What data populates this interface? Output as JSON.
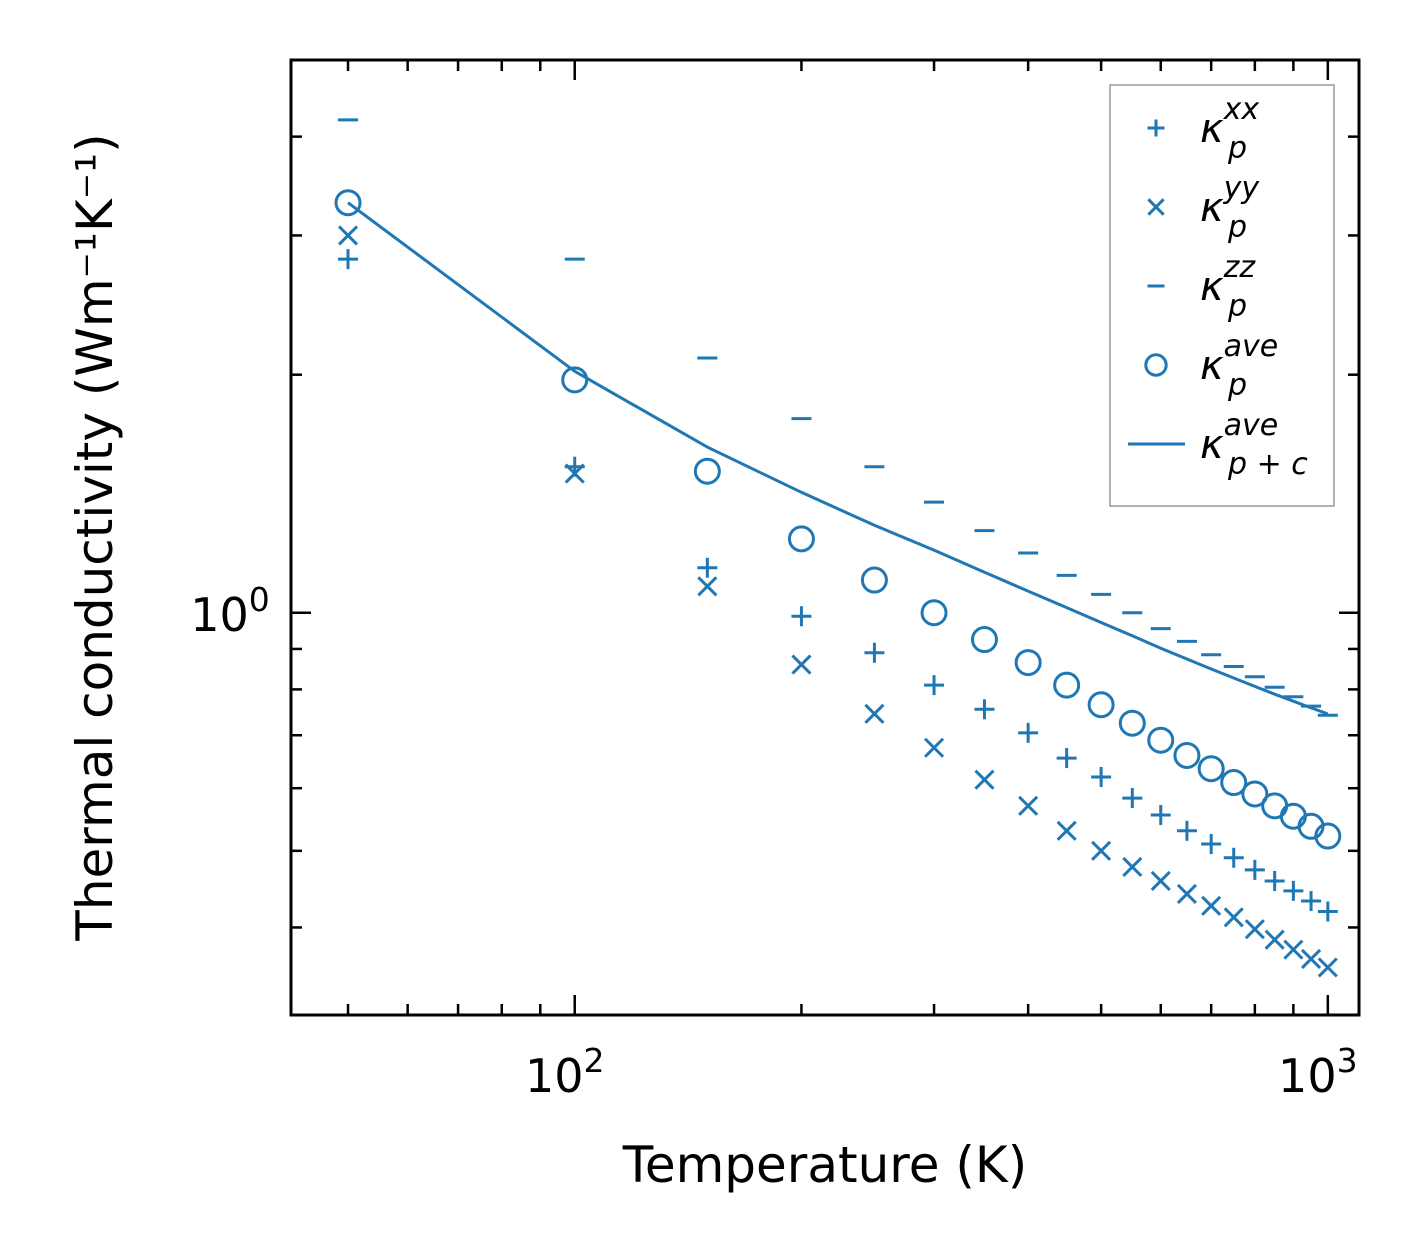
{
  "chart_data": {
    "type": "scatter",
    "xlabel": "Temperature (K)",
    "ylabel": "Thermal conductivity (Wm⁻¹K⁻¹)",
    "xscale": "log",
    "yscale": "log",
    "xlim": [
      42,
      1100
    ],
    "ylim": [
      0.31,
      5.0
    ],
    "x_major_ticks": [
      {
        "value": 100,
        "base": "10",
        "exp": "2"
      },
      {
        "value": 1000,
        "base": "10",
        "exp": "3"
      }
    ],
    "y_major_ticks": [
      {
        "value": 1,
        "base": "10",
        "exp": "0"
      }
    ],
    "color": "#1f77b4",
    "legend_position": "top-right",
    "series": [
      {
        "name": "kappa_p_xx",
        "label_base": "κ",
        "label_sup": "xx",
        "label_sub": "p",
        "marker": "plus",
        "x": [
          50,
          100,
          150,
          200,
          250,
          300,
          350,
          400,
          450,
          500,
          550,
          600,
          650,
          700,
          750,
          800,
          850,
          900,
          950,
          1000
        ],
        "y": [
          2.8,
          1.53,
          1.14,
          0.99,
          0.89,
          0.81,
          0.755,
          0.705,
          0.655,
          0.62,
          0.583,
          0.555,
          0.53,
          0.51,
          0.49,
          0.473,
          0.458,
          0.445,
          0.432,
          0.419
        ]
      },
      {
        "name": "kappa_p_yy",
        "label_base": "κ",
        "label_sup": "yy",
        "label_sub": "p",
        "marker": "x",
        "x": [
          50,
          100,
          150,
          200,
          250,
          300,
          350,
          400,
          450,
          500,
          550,
          600,
          650,
          700,
          750,
          800,
          850,
          900,
          950,
          1000
        ],
        "y": [
          3.0,
          1.5,
          1.08,
          0.86,
          0.745,
          0.675,
          0.615,
          0.57,
          0.53,
          0.5,
          0.477,
          0.458,
          0.441,
          0.426,
          0.412,
          0.398,
          0.386,
          0.375,
          0.365,
          0.356
        ]
      },
      {
        "name": "kappa_p_zz",
        "label_base": "κ",
        "label_sup": "zz",
        "label_sub": "p",
        "marker": "hline",
        "x": [
          50,
          100,
          150,
          200,
          250,
          300,
          350,
          400,
          450,
          500,
          550,
          600,
          650,
          700,
          750,
          800,
          850,
          900,
          950,
          1000
        ],
        "y": [
          4.2,
          2.8,
          2.1,
          1.76,
          1.53,
          1.38,
          1.27,
          1.19,
          1.115,
          1.055,
          1.0,
          0.955,
          0.92,
          0.885,
          0.855,
          0.83,
          0.805,
          0.783,
          0.762,
          0.742
        ]
      },
      {
        "name": "kappa_p_ave",
        "label_base": "κ",
        "label_sup": "ave",
        "label_sub": "p",
        "marker": "circle",
        "x": [
          50,
          100,
          150,
          200,
          250,
          300,
          350,
          400,
          450,
          500,
          550,
          600,
          650,
          700,
          750,
          800,
          850,
          900,
          950,
          1000
        ],
        "y": [
          3.3,
          1.97,
          1.51,
          1.24,
          1.1,
          1.0,
          0.925,
          0.865,
          0.81,
          0.765,
          0.725,
          0.69,
          0.66,
          0.635,
          0.61,
          0.59,
          0.57,
          0.553,
          0.537,
          0.522
        ]
      },
      {
        "name": "kappa_pc_ave",
        "label_base": "κ",
        "label_sup": "ave",
        "label_sub": "p + c",
        "marker": "line",
        "x": [
          50,
          100,
          150,
          200,
          250,
          300,
          350,
          400,
          450,
          500,
          550,
          600,
          650,
          700,
          750,
          800,
          850,
          900,
          950,
          1000
        ],
        "y": [
          3.3,
          2.02,
          1.62,
          1.42,
          1.29,
          1.2,
          1.125,
          1.065,
          1.015,
          0.972,
          0.935,
          0.902,
          0.874,
          0.849,
          0.827,
          0.807,
          0.789,
          0.773,
          0.758,
          0.745
        ]
      }
    ]
  }
}
